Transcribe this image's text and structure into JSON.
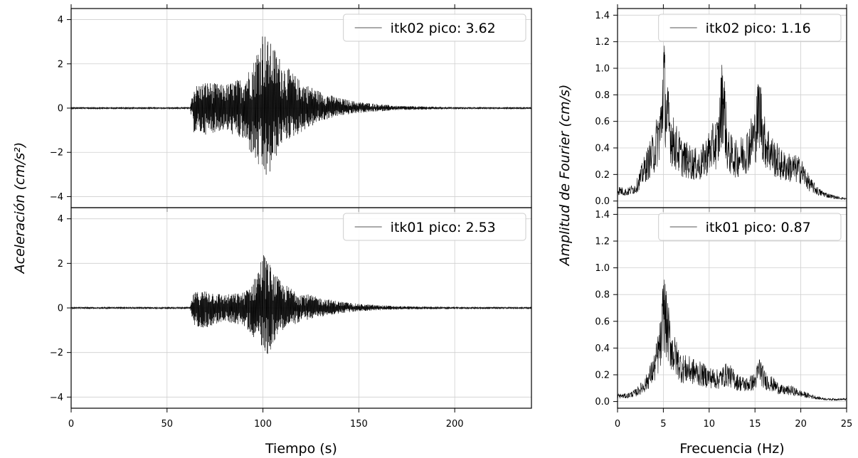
{
  "figure": {
    "left_ylabel": "Aceleración (cm/s²)",
    "right_ylabel": "Amplitud de Fourier (cm/s)"
  },
  "chart_data": [
    {
      "type": "line",
      "panel": "left-top",
      "xlabel": "",
      "ylabel": "",
      "xlim": [
        0,
        240
      ],
      "ylim": [
        -4.5,
        4.5
      ],
      "xticks": [
        0,
        50,
        100,
        150,
        200
      ],
      "yticks": [
        -4,
        -2,
        0,
        2,
        4
      ],
      "ytick_labels": [
        "−4",
        "−2",
        "0",
        "2",
        "4"
      ],
      "show_xticklabels": false,
      "grid": true,
      "legend_position": "top-right",
      "series": [
        {
          "name": "itk02 pico: 3.62",
          "color": "#000000"
        }
      ],
      "envelope": {
        "t": [
          0,
          62,
          64,
          70,
          80,
          90,
          95,
          100,
          103,
          105,
          110,
          120,
          130,
          140,
          150,
          170,
          200,
          240
        ],
        "upper": [
          0.05,
          0.05,
          1.0,
          1.2,
          1.05,
          1.4,
          2.1,
          3.62,
          3.0,
          2.9,
          2.1,
          1.2,
          0.75,
          0.45,
          0.28,
          0.1,
          0.05,
          0.05
        ],
        "lower": [
          -0.05,
          -0.05,
          -1.1,
          -1.2,
          -1.0,
          -1.5,
          -2.3,
          -3.1,
          -3.3,
          -2.6,
          -1.6,
          -1.1,
          -0.6,
          -0.35,
          -0.22,
          -0.09,
          -0.05,
          -0.05
        ]
      }
    },
    {
      "type": "line",
      "panel": "left-bottom",
      "xlabel": "Tiempo (s)",
      "ylabel": "",
      "xlim": [
        0,
        240
      ],
      "ylim": [
        -4.5,
        4.5
      ],
      "xticks": [
        0,
        50,
        100,
        150,
        200
      ],
      "yticks": [
        -4,
        -2,
        0,
        2,
        4
      ],
      "ytick_labels": [
        "−4",
        "−2",
        "0",
        "2",
        "4"
      ],
      "show_xticklabels": true,
      "grid": true,
      "legend_position": "top-right",
      "series": [
        {
          "name": "itk01 pico: 2.53",
          "color": "#000000"
        }
      ],
      "envelope": {
        "t": [
          0,
          62,
          64,
          70,
          80,
          90,
          95,
          100,
          103,
          105,
          110,
          120,
          130,
          140,
          150,
          170,
          200,
          240
        ],
        "upper": [
          0.05,
          0.05,
          0.7,
          0.8,
          0.6,
          0.7,
          1.2,
          2.53,
          2.1,
          1.7,
          1.1,
          0.7,
          0.45,
          0.3,
          0.18,
          0.08,
          0.05,
          0.05
        ],
        "lower": [
          -0.05,
          -0.05,
          -0.8,
          -0.9,
          -0.6,
          -0.8,
          -1.3,
          -1.8,
          -2.2,
          -1.6,
          -1.0,
          -0.6,
          -0.4,
          -0.25,
          -0.15,
          -0.07,
          -0.05,
          -0.05
        ]
      }
    },
    {
      "type": "line",
      "panel": "right-top",
      "xlabel": "",
      "ylabel": "",
      "xlim": [
        0,
        25
      ],
      "ylim": [
        -0.05,
        1.45
      ],
      "xticks": [
        0,
        5,
        10,
        15,
        20,
        25
      ],
      "yticks": [
        0.0,
        0.2,
        0.4,
        0.6,
        0.8,
        1.0,
        1.2,
        1.4
      ],
      "ytick_labels": [
        "0.0",
        "0.2",
        "0.4",
        "0.6",
        "0.8",
        "1.0",
        "1.2",
        "1.4"
      ],
      "show_xticklabels": false,
      "grid": true,
      "legend_position": "top-right",
      "series": [
        {
          "name": "itk02 pico: 1.16",
          "color": "#000000"
        }
      ],
      "spectrum": {
        "f": [
          0,
          1,
          2,
          3,
          4,
          4.8,
          5.0,
          5.3,
          6.0,
          7,
          8,
          9,
          10,
          11,
          11.5,
          12,
          13,
          14,
          15,
          15.5,
          16,
          17,
          18,
          19,
          20,
          21,
          22,
          23,
          24,
          25
        ],
        "amp": [
          0.1,
          0.08,
          0.12,
          0.3,
          0.45,
          0.7,
          1.16,
          0.8,
          0.55,
          0.4,
          0.35,
          0.32,
          0.45,
          0.55,
          1.0,
          0.45,
          0.38,
          0.45,
          0.6,
          0.85,
          0.55,
          0.4,
          0.32,
          0.3,
          0.28,
          0.15,
          0.08,
          0.05,
          0.03,
          0.02
        ]
      }
    },
    {
      "type": "line",
      "panel": "right-bottom",
      "xlabel": "Frecuencia (Hz)",
      "ylabel": "",
      "xlim": [
        0,
        25
      ],
      "ylim": [
        -0.05,
        1.45
      ],
      "xticks": [
        0,
        5,
        10,
        15,
        20,
        25
      ],
      "yticks": [
        0.0,
        0.2,
        0.4,
        0.6,
        0.8,
        1.0,
        1.2,
        1.4
      ],
      "ytick_labels": [
        "0.0",
        "0.2",
        "0.4",
        "0.6",
        "0.8",
        "1.0",
        "1.2",
        "1.4"
      ],
      "show_xticklabels": true,
      "grid": true,
      "legend_position": "top-right",
      "series": [
        {
          "name": "itk01 pico: 0.87",
          "color": "#000000"
        }
      ],
      "spectrum": {
        "f": [
          0,
          1,
          2,
          3,
          4,
          4.8,
          5.0,
          5.3,
          6.0,
          7,
          8,
          9,
          10,
          11,
          12,
          13,
          14,
          15,
          15.5,
          16,
          17,
          18,
          19,
          20,
          21,
          22,
          23,
          24,
          25
        ],
        "amp": [
          0.05,
          0.05,
          0.08,
          0.15,
          0.3,
          0.55,
          0.87,
          0.7,
          0.45,
          0.3,
          0.28,
          0.25,
          0.22,
          0.2,
          0.25,
          0.18,
          0.15,
          0.18,
          0.3,
          0.2,
          0.15,
          0.1,
          0.1,
          0.07,
          0.05,
          0.03,
          0.02,
          0.02,
          0.02
        ]
      }
    }
  ]
}
